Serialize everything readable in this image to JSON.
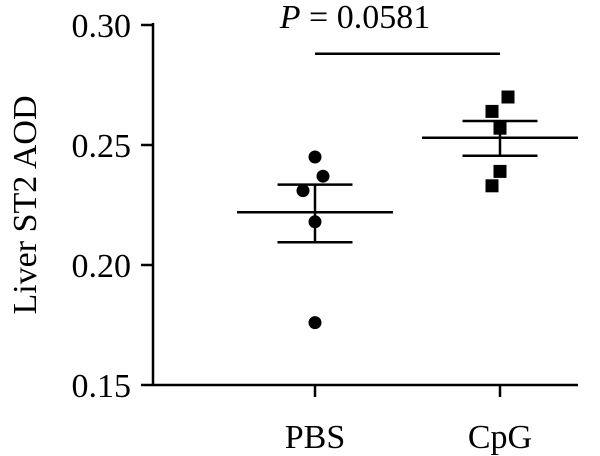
{
  "chart_data": {
    "type": "scatter",
    "title": "",
    "xlabel": "",
    "ylabel": "Liver ST2 AOD",
    "ylim": [
      0.15,
      0.3
    ],
    "yticks": [
      "0.15",
      "0.20",
      "0.25",
      "0.30"
    ],
    "yticks_values": [
      0.15,
      0.2,
      0.25,
      0.3
    ],
    "categories": [
      "PBS",
      "CpG"
    ],
    "series": [
      {
        "category": "PBS",
        "marker": "circle",
        "values": [
          0.245,
          0.237,
          0.231,
          0.218,
          0.176
        ],
        "jitter": [
          0,
          4,
          -6,
          0,
          0
        ],
        "mean": 0.222,
        "sem": [
          0.2095,
          0.2335
        ]
      },
      {
        "category": "CpG",
        "marker": "square",
        "values": [
          0.27,
          0.264,
          0.257,
          0.239,
          0.233
        ],
        "jitter": [
          4,
          -4,
          0,
          0,
          -4
        ],
        "mean": 0.253,
        "sem": [
          0.2455,
          0.26
        ]
      }
    ],
    "annotation": {
      "italic": "P",
      "text": " = 0.0581",
      "bracket_y": 0.288
    },
    "grid": false,
    "legend": "none"
  }
}
